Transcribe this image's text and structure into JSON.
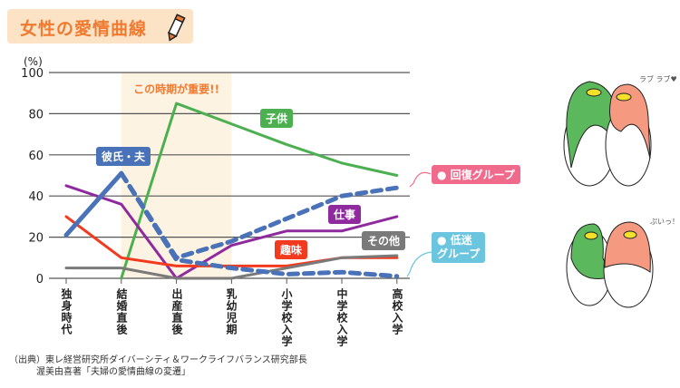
{
  "title": "女性の愛情曲線",
  "icons": {
    "title": "pencil-icon",
    "illustration": "penguin-couple"
  },
  "chart_data": {
    "type": "line",
    "ylabel": "(%)",
    "ylim": [
      0,
      100
    ],
    "yticks": [
      "0",
      "20",
      "40",
      "60",
      "80",
      "100"
    ],
    "grid": true,
    "categories": [
      "独身時代",
      "結婚直後",
      "出産直後",
      "乳幼児期",
      "小学校入学",
      "中学校入学",
      "高校入学"
    ],
    "highlight": {
      "from": "結婚直後",
      "to": "乳幼児期",
      "label": "この時期が重要!!",
      "color": "#fdf3e3"
    },
    "series": [
      {
        "name": "子供",
        "color": "#4caf50",
        "style": "solid",
        "values": [
          null,
          0,
          85,
          75,
          65,
          56,
          50
        ]
      },
      {
        "name": "仕事",
        "color": "#8e2a9e",
        "style": "solid",
        "values": [
          45,
          36,
          0,
          16,
          23,
          23,
          30
        ]
      },
      {
        "name": "趣味",
        "color": "#f23a1e",
        "style": "solid",
        "values": [
          30,
          10,
          6,
          6,
          6,
          10,
          10
        ]
      },
      {
        "name": "その他",
        "color": "#7a7a7a",
        "style": "solid",
        "values": [
          5,
          5,
          0,
          0,
          5,
          10,
          11
        ]
      },
      {
        "name": "彼氏・夫",
        "color": "#4a72b8",
        "style": "solid-thick",
        "values": [
          21,
          51,
          null,
          null,
          null,
          null,
          null
        ]
      },
      {
        "name": "回復グループ",
        "color": "#4a72b8",
        "style": "dashed",
        "values": [
          null,
          51,
          10,
          18,
          29,
          40,
          44
        ]
      },
      {
        "name": "低迷グループ",
        "color": "#4a72b8",
        "style": "dashed",
        "values": [
          null,
          51,
          9,
          5,
          2,
          3,
          1
        ]
      }
    ],
    "callouts": {
      "recovery": "回復グループ",
      "low_line1": "低迷",
      "low_line2": "グループ",
      "recovery_color": "#f06a8c",
      "low_color": "#6cc5de"
    }
  },
  "source_line1": "（出典）東レ経営研究所ダイバーシティ＆ワークライフバランス研究部長",
  "source_line2": "渥美由喜著「夫婦の愛情曲線の変遷」",
  "illustration_text": {
    "love": "ラブ ラブ♥",
    "pout": "ぷいっ！"
  }
}
